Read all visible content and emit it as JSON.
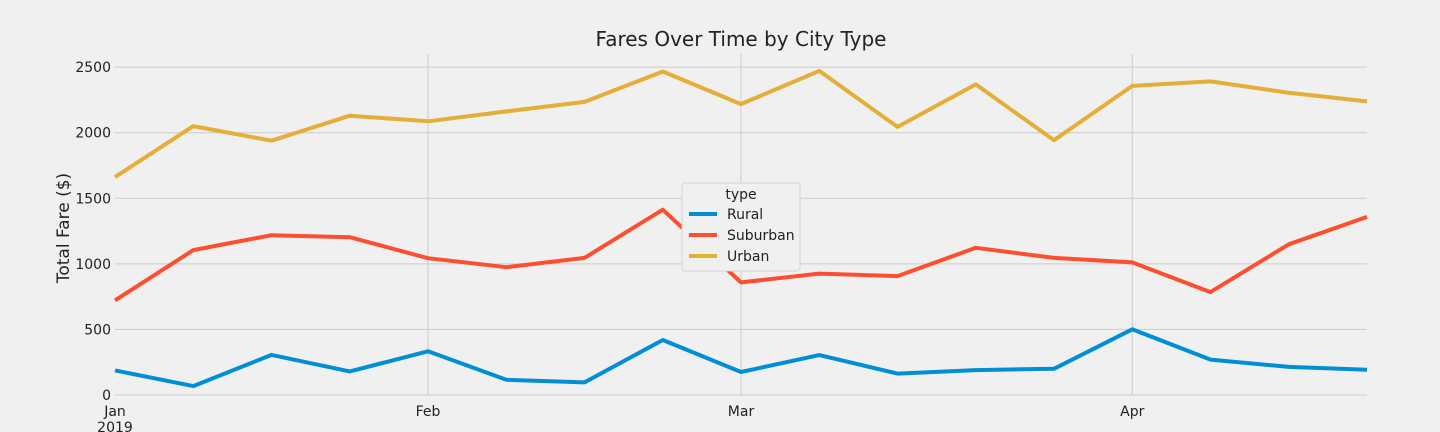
{
  "chart_data": {
    "type": "line",
    "title": "Fares Over Time by City Type",
    "xlabel": "",
    "ylabel": "Total Fare ($)",
    "x": [
      "2019-01-06",
      "2019-01-13",
      "2019-01-20",
      "2019-01-27",
      "2019-02-03",
      "2019-02-10",
      "2019-02-17",
      "2019-02-24",
      "2019-03-03",
      "2019-03-10",
      "2019-03-17",
      "2019-03-24",
      "2019-03-31",
      "2019-04-07",
      "2019-04-14",
      "2019-04-21",
      "2019-04-28"
    ],
    "xlim": [
      "2019-01-06",
      "2019-04-28"
    ],
    "ylim": [
      0,
      2600
    ],
    "x_ticks": [
      {
        "date": "2019-01-06",
        "label": "Jan",
        "sublabel": "2019"
      },
      {
        "date": "2019-02-03",
        "label": "Feb",
        "sublabel": ""
      },
      {
        "date": "2019-03-03",
        "label": "Mar",
        "sublabel": ""
      },
      {
        "date": "2019-04-07",
        "label": "Apr",
        "sublabel": ""
      }
    ],
    "y_ticks": [
      0,
      500,
      1000,
      1500,
      2000,
      2500
    ],
    "grid": true,
    "legend": {
      "title": "type",
      "placement": "center"
    },
    "series": [
      {
        "name": "Rural",
        "color": "#008fd5",
        "values": [
          187.92,
          67.65,
          306.0,
          179.69,
          333.08,
          115.8,
          95.82,
          419.06,
          175.14,
          303.94,
          163.39,
          189.76,
          199.42,
          501.24,
          269.79,
          214.14,
          191.85
        ]
      },
      {
        "name": "Suburban",
        "color": "#fc4f30",
        "values": [
          721.6,
          1105.13,
          1218.2,
          1203.28,
          1042.79,
          974.34,
          1045.5,
          1412.74,
          858.46,
          925.27,
          906.2,
          1122.2,
          1045.06,
          1010.73,
          784.82,
          1149.27,
          1357.75
        ]
      },
      {
        "name": "Urban",
        "color": "#e5ae38",
        "values": [
          1661.68,
          2050.43,
          1939.02,
          2129.51,
          2086.94,
          2162.64,
          2235.07,
          2466.29,
          2218.2,
          2470.93,
          2044.42,
          2368.37,
          1942.77,
          2356.7,
          2390.72,
          2303.8,
          2238.29
        ]
      }
    ]
  }
}
